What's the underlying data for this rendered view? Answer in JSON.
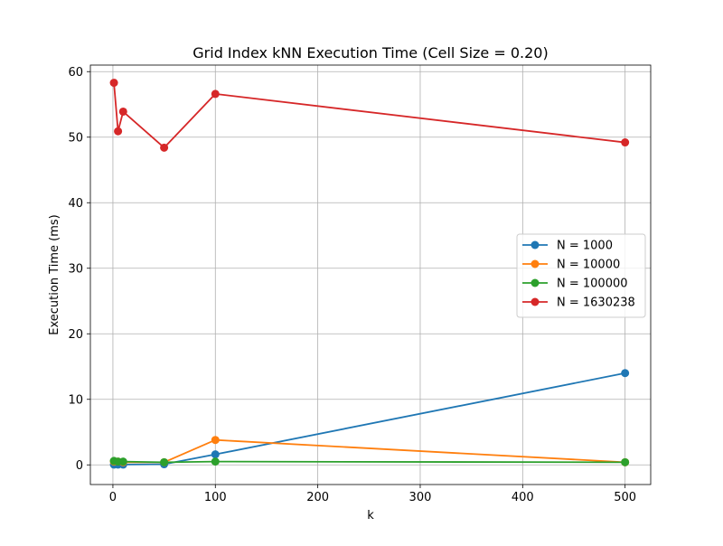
{
  "chart_data": {
    "type": "line",
    "title": "Grid Index kNN Execution Time (Cell Size = 0.20)",
    "xlabel": "k",
    "ylabel": "Execution Time (ms)",
    "xlim": [
      -22,
      525
    ],
    "ylim": [
      -3,
      61
    ],
    "x_ticks": [
      0,
      100,
      200,
      300,
      400,
      500
    ],
    "y_ticks": [
      0,
      10,
      20,
      30,
      40,
      50,
      60
    ],
    "grid": true,
    "legend_position": "center-right",
    "series": [
      {
        "name": "N = 1000",
        "color": "#1f77b4",
        "x": [
          1,
          5,
          10,
          50,
          100,
          500
        ],
        "values": [
          0.05,
          0.05,
          0.05,
          0.1,
          1.6,
          14.0
        ]
      },
      {
        "name": "N = 10000",
        "color": "#ff7f0e",
        "x": [
          1,
          5,
          10,
          50,
          100,
          500
        ],
        "values": [
          0.5,
          0.5,
          0.4,
          0.4,
          3.8,
          0.4
        ]
      },
      {
        "name": "N = 100000",
        "color": "#2ca02c",
        "x": [
          1,
          5,
          10,
          50,
          100,
          500
        ],
        "values": [
          0.6,
          0.5,
          0.5,
          0.4,
          0.5,
          0.4
        ]
      },
      {
        "name": "N = 1630238",
        "color": "#d62728",
        "x": [
          1,
          5,
          10,
          50,
          100,
          500
        ],
        "values": [
          58.3,
          50.9,
          53.9,
          48.4,
          56.6,
          49.2
        ]
      }
    ]
  }
}
